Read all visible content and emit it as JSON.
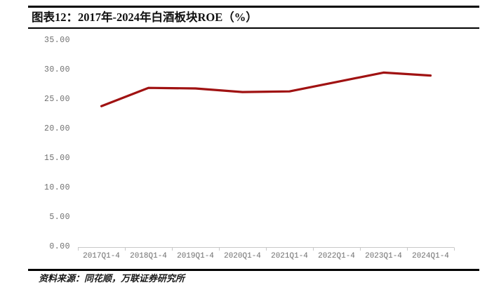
{
  "figure": {
    "title": "图表12：2017年-2024年白酒板块ROE（%）",
    "source": "资料来源：同花顺，万联证券研究所"
  },
  "chart_data": {
    "type": "line",
    "title": "2017年-2024年白酒板块ROE（%）",
    "categories": [
      "2017Q1-4",
      "2018Q1-4",
      "2019Q1-4",
      "2020Q1-4",
      "2021Q1-4",
      "2022Q1-4",
      "2023Q1-4",
      "2024Q1-4"
    ],
    "values": [
      23.9,
      27.0,
      26.9,
      26.3,
      26.4,
      28.0,
      29.6,
      29.1
    ],
    "xlabel": "",
    "ylabel": "",
    "ylim": [
      0,
      35
    ],
    "ytick_interval": 5,
    "ytick_labels": [
      "35.00",
      "30.00",
      "25.00",
      "20.00",
      "15.00",
      "10.00",
      "5.00",
      "0.00"
    ],
    "grid": false,
    "legend": false,
    "line_color": "#A01212"
  }
}
